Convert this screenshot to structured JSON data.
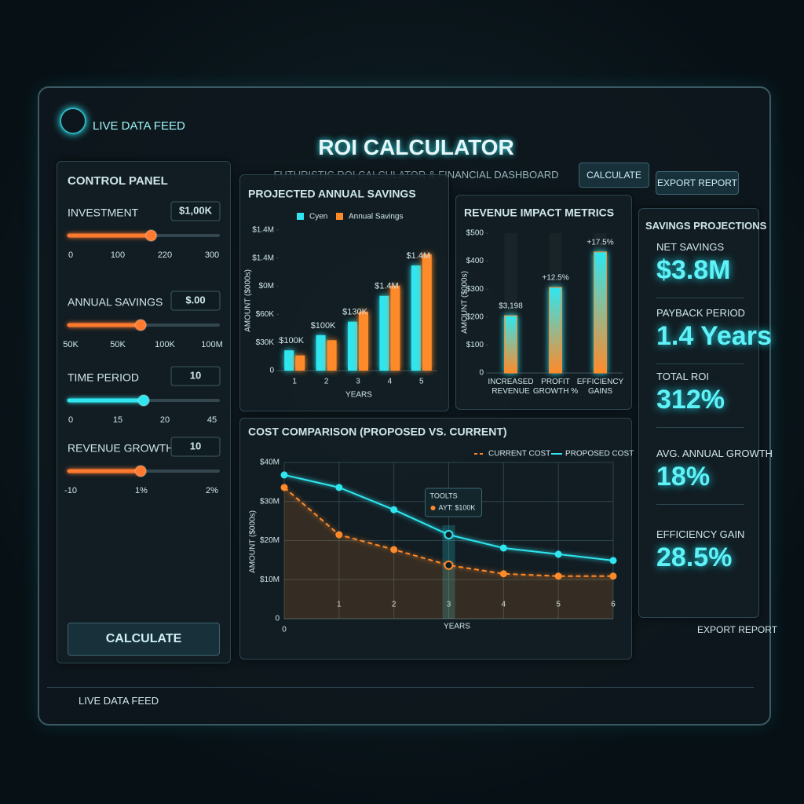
{
  "header": {
    "feed": "LIVE DATA FEED",
    "title": "ROI CALCULATOR",
    "subtitle": "FUTURISTIC ROI CALCULATOR & FINANCIAL DASHBOARD",
    "buttons": [
      "CALCULATE",
      "EXPORT REPORT"
    ]
  },
  "control_panel": {
    "title": "CONTROL PANEL",
    "button": "CALCULATE",
    "sliders": [
      {
        "label": "INVESTMENT",
        "value": "$1,00K",
        "level": 55,
        "ticks": [
          "0",
          "100",
          "220",
          "300"
        ],
        "color": "#ff7a2f"
      },
      {
        "label": "ANNUAL SAVINGS",
        "value": "$.00",
        "level": 48,
        "ticks": [
          "50K",
          "50K",
          "100K",
          "100M"
        ],
        "color": "#ff7a2f"
      },
      {
        "label": "TIME PERIOD",
        "value": "10",
        "level": 50,
        "ticks": [
          "0",
          "15",
          "20",
          "45"
        ],
        "color": "#2fe6f0"
      },
      {
        "label": "REVENUE GROWTH %",
        "value": "10",
        "level": 48,
        "ticks": [
          "-10",
          "1%",
          "2%"
        ],
        "color": "#ff7a2f"
      }
    ]
  },
  "chart_data": [
    {
      "type": "bar",
      "title": "PROJECTED ANNUAL SAVINGS",
      "x_label": "YEARS",
      "y_label": "AMOUNT ($000s)",
      "categories": [
        "1",
        "2",
        "3",
        "4",
        "5"
      ],
      "series": [
        {
          "name": "Cyen",
          "color": "#2fe6f0",
          "values": [
            36,
            63,
            87,
            133,
            187
          ]
        },
        {
          "name": "Annual Savings",
          "color": "#ff8a2a",
          "values": [
            27,
            54,
            105,
            151,
            207
          ]
        }
      ],
      "bar_labels": [
        "$100K",
        "$100K",
        "$130K",
        "$1.4M",
        "$1.4M"
      ],
      "ylim": [
        0,
        250
      ],
      "yticks": [
        0,
        {
          "value": 50,
          "label": "$30K"
        },
        {
          "value": 100,
          "label": "$60K"
        },
        {
          "value": 150,
          "label": "$0M"
        },
        {
          "value": 200,
          "label": "$1.4M"
        },
        {
          "value": 250,
          "label": "$1.4M"
        }
      ],
      "grid": false
    },
    {
      "type": "bar",
      "title": "REVENUE IMPACT METRICS",
      "y_label": "AMOUNT ($000s)",
      "categories": [
        "INCREASED REVENUE",
        "PROFIT GROWTH %",
        "EFFICIENCY GAINS"
      ],
      "values": [
        205,
        306,
        433
      ],
      "bar_labels": [
        "$3,198",
        "+12.5%",
        "+17.5%"
      ],
      "color": "#2fe6f0",
      "color2": "#ff8a2a",
      "ylim": [
        0,
        500
      ],
      "yticks": [
        0,
        {
          "value": 100,
          "label": "$100"
        },
        {
          "value": 200,
          "label": "$200"
        },
        {
          "value": 300,
          "label": "$300"
        },
        {
          "value": 400,
          "label": "$400"
        },
        {
          "value": 500,
          "label": "$500"
        }
      ],
      "grid": false
    },
    {
      "type": "line",
      "title": "COST COMPARISON (PROPOSED VS. CURRENT)",
      "x_label": "YEARS",
      "y_label": "AMOUNT ($000s)",
      "x": [
        0,
        1,
        2,
        3,
        4,
        5,
        6
      ],
      "series": [
        {
          "name": "CURRENT COST",
          "color": "#ff8a2a",
          "dashed": true,
          "values": [
            33.6,
            21.5,
            17.7,
            13.7,
            11.5,
            10.9,
            10.9
          ]
        },
        {
          "name": "PROPOSED COST",
          "color": "#2fe6f0",
          "dashed": false,
          "values": [
            36.8,
            33.6,
            27.9,
            21.5,
            18.1,
            16.5,
            14.9
          ]
        }
      ],
      "xlim": [
        0,
        6
      ],
      "xticks": [
        0,
        1,
        2,
        3,
        4,
        5,
        6
      ],
      "ylim": [
        0,
        40
      ],
      "yticks": [
        0,
        {
          "value": 10,
          "label": "$10M"
        },
        {
          "value": 20,
          "label": "$20M"
        },
        {
          "value": 30,
          "label": "$30M"
        },
        {
          "value": 40,
          "label": "$40M"
        }
      ],
      "grid": true,
      "tooltip": {
        "x": 3,
        "title": "TOOLTS",
        "text": "AYT: $100K"
      }
    }
  ],
  "projections": {
    "title": "SAVINGS PROJECTIONS",
    "items": [
      {
        "label": "NET SAVINGS",
        "value": "$3.8M"
      },
      {
        "label": "PAYBACK PERIOD",
        "value": "1.4 Years"
      },
      {
        "label": "TOTAL ROI",
        "value": "312%"
      },
      {
        "label": "AVG. ANNUAL GROWTH",
        "value": "18%"
      },
      {
        "label": "EFFICIENCY GAIN",
        "value": "28.5%"
      }
    ]
  },
  "footer": {
    "feed": "LIVE DATA FEED",
    "export": "EXPORT REPORT"
  }
}
